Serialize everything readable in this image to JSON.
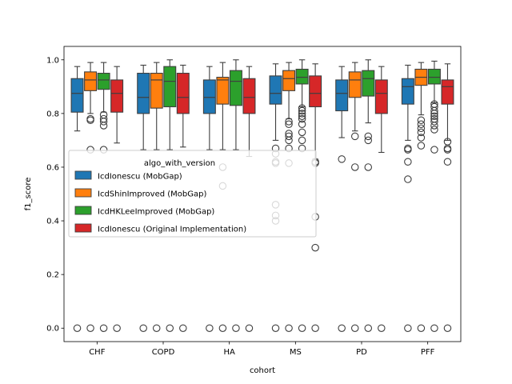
{
  "chart_data": {
    "type": "box",
    "xlabel": "cohort",
    "ylabel": "f1_score",
    "categories": [
      "CHF",
      "COPD",
      "HA",
      "MS",
      "PD",
      "PFF"
    ],
    "ylim": [
      -0.05,
      1.05
    ],
    "yticks": [
      0.0,
      0.2,
      0.4,
      0.6,
      0.8,
      1.0
    ],
    "ytick_labels": [
      "0.0",
      "0.2",
      "0.4",
      "0.6",
      "0.8",
      "1.0"
    ],
    "grid": false,
    "legend": {
      "title": "algo_with_version",
      "placement": "center-left"
    },
    "series": [
      {
        "name": "IcdIonescu (MobGap)",
        "color": "#1f77b4",
        "boxes": [
          {
            "q1": 0.805,
            "median": 0.875,
            "q3": 0.93,
            "whislo": 0.735,
            "whishi": 0.975,
            "fliers": [
              0.0
            ]
          },
          {
            "q1": 0.8,
            "median": 0.86,
            "q3": 0.95,
            "whislo": 0.665,
            "whishi": 0.98,
            "fliers": [
              0.0
            ]
          },
          {
            "q1": 0.8,
            "median": 0.86,
            "q3": 0.925,
            "whislo": 0.665,
            "whishi": 0.975,
            "fliers": [
              0.0
            ]
          },
          {
            "q1": 0.835,
            "median": 0.875,
            "q3": 0.94,
            "whislo": 0.7,
            "whishi": 0.985,
            "fliers": [
              0.0,
              0.4,
              0.42,
              0.46,
              0.615,
              0.62,
              0.65,
              0.67
            ]
          },
          {
            "q1": 0.81,
            "median": 0.875,
            "q3": 0.925,
            "whislo": 0.71,
            "whishi": 0.975,
            "fliers": [
              0.0,
              0.63
            ]
          },
          {
            "q1": 0.835,
            "median": 0.9,
            "q3": 0.93,
            "whislo": 0.7,
            "whishi": 0.98,
            "fliers": [
              0.0,
              0.555,
              0.62,
              0.665,
              0.67
            ]
          }
        ]
      },
      {
        "name": "IcdShinImproved (MobGap)",
        "color": "#ff7f0e",
        "boxes": [
          {
            "q1": 0.885,
            "median": 0.925,
            "q3": 0.955,
            "whislo": 0.8,
            "whishi": 0.99,
            "fliers": [
              0.0,
              0.665,
              0.775,
              0.78
            ]
          },
          {
            "q1": 0.82,
            "median": 0.925,
            "q3": 0.95,
            "whislo": 0.665,
            "whishi": 0.99,
            "fliers": [
              0.0
            ]
          },
          {
            "q1": 0.835,
            "median": 0.925,
            "q3": 0.935,
            "whislo": 0.665,
            "whishi": 0.99,
            "fliers": [
              0.0,
              0.53,
              0.6
            ]
          },
          {
            "q1": 0.885,
            "median": 0.93,
            "q3": 0.96,
            "whislo": 0.78,
            "whishi": 0.99,
            "fliers": [
              0.0,
              0.615,
              0.67,
              0.7,
              0.715,
              0.725,
              0.76,
              0.77
            ]
          },
          {
            "q1": 0.86,
            "median": 0.925,
            "q3": 0.955,
            "whislo": 0.735,
            "whishi": 0.99,
            "fliers": [
              0.0,
              0.6,
              0.715
            ]
          },
          {
            "q1": 0.905,
            "median": 0.935,
            "q3": 0.965,
            "whislo": 0.795,
            "whishi": 0.99,
            "fliers": [
              0.0,
              0.68,
              0.71,
              0.73,
              0.745,
              0.76,
              0.775
            ]
          }
        ]
      },
      {
        "name": "IcdHKLeeImproved (MobGap)",
        "color": "#2ca02c",
        "boxes": [
          {
            "q1": 0.89,
            "median": 0.925,
            "q3": 0.95,
            "whislo": 0.805,
            "whishi": 0.99,
            "fliers": [
              0.0,
              0.665,
              0.755,
              0.77,
              0.78,
              0.795
            ]
          },
          {
            "q1": 0.825,
            "median": 0.92,
            "q3": 0.975,
            "whislo": 0.665,
            "whishi": 1.0,
            "fliers": [
              0.0
            ]
          },
          {
            "q1": 0.83,
            "median": 0.92,
            "q3": 0.96,
            "whislo": 0.665,
            "whishi": 1.0,
            "fliers": [
              0.0
            ]
          },
          {
            "q1": 0.91,
            "median": 0.935,
            "q3": 0.965,
            "whislo": 0.825,
            "whishi": 1.0,
            "fliers": [
              0.0,
              0.67,
              0.7,
              0.73,
              0.76,
              0.78,
              0.79,
              0.8,
              0.81,
              0.82
            ]
          },
          {
            "q1": 0.865,
            "median": 0.93,
            "q3": 0.96,
            "whislo": 0.765,
            "whishi": 1.0,
            "fliers": [
              0.0,
              0.6,
              0.7,
              0.715
            ]
          },
          {
            "q1": 0.91,
            "median": 0.935,
            "q3": 0.965,
            "whislo": 0.84,
            "whishi": 0.995,
            "fliers": [
              0.0,
              0.665,
              0.74,
              0.755,
              0.77,
              0.78,
              0.79,
              0.8,
              0.81,
              0.825,
              0.835
            ]
          }
        ]
      },
      {
        "name": "IcdIonescu (Original Implementation)",
        "color": "#d62728",
        "boxes": [
          {
            "q1": 0.805,
            "median": 0.875,
            "q3": 0.925,
            "whislo": 0.69,
            "whishi": 0.975,
            "fliers": [
              0.0
            ]
          },
          {
            "q1": 0.8,
            "median": 0.86,
            "q3": 0.95,
            "whislo": 0.675,
            "whishi": 0.98,
            "fliers": [
              0.0
            ]
          },
          {
            "q1": 0.8,
            "median": 0.86,
            "q3": 0.93,
            "whislo": 0.64,
            "whishi": 0.975,
            "fliers": [
              0.0
            ]
          },
          {
            "q1": 0.825,
            "median": 0.875,
            "q3": 0.94,
            "whislo": 0.63,
            "whishi": 0.985,
            "fliers": [
              0.0,
              0.3,
              0.415,
              0.615,
              0.62
            ]
          },
          {
            "q1": 0.8,
            "median": 0.875,
            "q3": 0.925,
            "whislo": 0.655,
            "whishi": 0.975,
            "fliers": [
              0.0
            ]
          },
          {
            "q1": 0.835,
            "median": 0.9,
            "q3": 0.925,
            "whislo": 0.7,
            "whishi": 0.985,
            "fliers": [
              0.0,
              0.62,
              0.665,
              0.67,
              0.695
            ]
          }
        ]
      }
    ]
  }
}
